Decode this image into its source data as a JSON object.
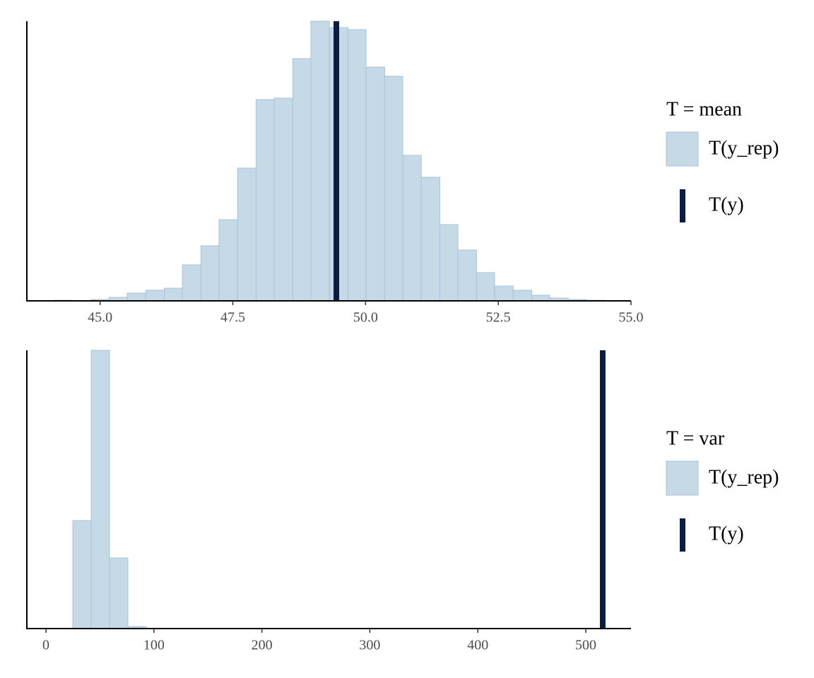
{
  "chart_data": [
    {
      "type": "histogram",
      "legend_title": "T = mean",
      "bins": [
        44.13,
        44.48,
        44.82,
        45.17,
        45.51,
        45.86,
        46.21,
        46.55,
        46.9,
        47.24,
        47.59,
        47.94,
        48.28,
        48.63,
        48.97,
        49.32,
        49.67,
        50.01,
        50.36,
        50.7,
        51.05,
        51.4,
        51.74,
        52.09,
        52.43,
        52.78,
        53.13,
        53.47,
        53.82,
        54.16,
        54.51
      ],
      "series": [
        {
          "name": "T(y_rep)",
          "color": "#c6d9e6",
          "values": [
            1,
            0,
            2,
            5,
            11,
            15,
            18,
            51,
            78,
            115,
            188,
            285,
            287,
            343,
            396,
            387,
            384,
            331,
            318,
            206,
            175,
            108,
            72,
            40,
            21,
            15,
            8,
            4,
            2,
            1
          ]
        }
      ],
      "observed": {
        "name": "T(y)",
        "color": "#0b1d40",
        "value": 49.45
      },
      "xlim": [
        43.62,
        55.0
      ],
      "ylim": [
        0,
        396
      ],
      "xticks": [
        {
          "value": 45,
          "label": "45.0"
        },
        47.5,
        {
          "value": 50,
          "label": "50.0"
        },
        52.5,
        {
          "value": 55,
          "label": "55.0"
        }
      ]
    },
    {
      "type": "histogram",
      "legend_title": "T = var",
      "bins": [
        24.9,
        41.9,
        58.9,
        75.9,
        92.9
      ],
      "series": [
        {
          "name": "T(y_rep)",
          "color": "#c6d9e6",
          "values": [
            153,
            394,
            100,
            3
          ]
        }
      ],
      "observed": {
        "name": "T(y)",
        "color": "#0b1d40",
        "value": 515.7
      },
      "xlim": [
        -17.7,
        541.9
      ],
      "ylim": [
        0,
        394
      ],
      "xticks": [
        0,
        100,
        200,
        300,
        400,
        500
      ]
    }
  ]
}
